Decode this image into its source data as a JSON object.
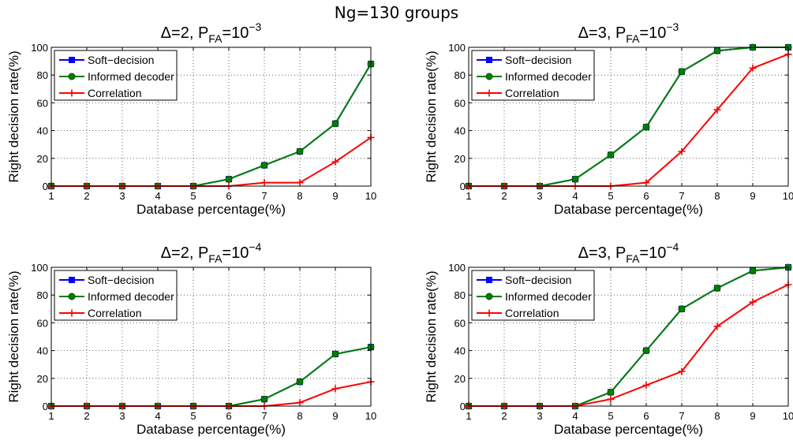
{
  "suptitle": "Ng=130 groups",
  "chart_data": [
    {
      "type": "line",
      "title": {
        "lead": "Δ=2, P",
        "sub": "FA",
        "mid": "=10",
        "sup": "−3"
      },
      "xlabel": "Database percentage(%)",
      "ylabel": "Right decision rate(%)",
      "x": [
        1,
        2,
        3,
        4,
        5,
        6,
        7,
        8,
        9,
        10
      ],
      "xlim": [
        1,
        10
      ],
      "ylim": [
        0,
        100
      ],
      "xticks": [
        1,
        2,
        3,
        4,
        5,
        6,
        7,
        8,
        9,
        10
      ],
      "yticks": [
        0,
        20,
        40,
        60,
        80,
        100
      ],
      "grid": true,
      "legend": "top-left",
      "series": [
        {
          "name": "Soft−decision",
          "color": "#0000ff",
          "marker": "square",
          "values": [
            0,
            0,
            0,
            0,
            0,
            5,
            15,
            25,
            45,
            88
          ]
        },
        {
          "name": "Informed decoder",
          "color": "#008000",
          "marker": "circle",
          "values": [
            0,
            0,
            0,
            0,
            0,
            5,
            15,
            25,
            45,
            88
          ]
        },
        {
          "name": "Correlation",
          "color": "#ff0000",
          "marker": "plus",
          "values": [
            0,
            0,
            0,
            0,
            0,
            0,
            2.5,
            2.5,
            17.5,
            35
          ]
        }
      ]
    },
    {
      "type": "line",
      "title": {
        "lead": "Δ=3, P",
        "sub": "FA",
        "mid": "=10",
        "sup": "−3"
      },
      "xlabel": "Database percentage(%)",
      "ylabel": "Right decision rate(%)",
      "x": [
        1,
        2,
        3,
        4,
        5,
        6,
        7,
        8,
        9,
        10
      ],
      "xlim": [
        1,
        10
      ],
      "ylim": [
        0,
        100
      ],
      "xticks": [
        1,
        2,
        3,
        4,
        5,
        6,
        7,
        8,
        9,
        10
      ],
      "yticks": [
        0,
        20,
        40,
        60,
        80,
        100
      ],
      "grid": true,
      "legend": "top-left",
      "series": [
        {
          "name": "Soft−decision",
          "color": "#0000ff",
          "marker": "square",
          "values": [
            0,
            0,
            0,
            5,
            22.5,
            42.5,
            82.5,
            97.5,
            100,
            100
          ]
        },
        {
          "name": "Informed decoder",
          "color": "#008000",
          "marker": "circle",
          "values": [
            0,
            0,
            0,
            5,
            22.5,
            42.5,
            82.5,
            97.5,
            100,
            100
          ]
        },
        {
          "name": "Correlation",
          "color": "#ff0000",
          "marker": "plus",
          "values": [
            0,
            0,
            0,
            0,
            0,
            2.5,
            25,
            55,
            85,
            95
          ]
        }
      ]
    },
    {
      "type": "line",
      "title": {
        "lead": "Δ=2, P",
        "sub": "FA",
        "mid": "=10",
        "sup": "−4"
      },
      "xlabel": "Database percentage(%)",
      "ylabel": "Right decision rate(%)",
      "x": [
        1,
        2,
        3,
        4,
        5,
        6,
        7,
        8,
        9,
        10
      ],
      "xlim": [
        1,
        10
      ],
      "ylim": [
        0,
        100
      ],
      "xticks": [
        1,
        2,
        3,
        4,
        5,
        6,
        7,
        8,
        9,
        10
      ],
      "yticks": [
        0,
        20,
        40,
        60,
        80,
        100
      ],
      "grid": true,
      "legend": "top-left",
      "series": [
        {
          "name": "Soft−decision",
          "color": "#0000ff",
          "marker": "square",
          "values": [
            0,
            0,
            0,
            0,
            0,
            0,
            5,
            17.5,
            37.5,
            42.5
          ]
        },
        {
          "name": "Informed decoder",
          "color": "#008000",
          "marker": "circle",
          "values": [
            0,
            0,
            0,
            0,
            0,
            0,
            5,
            17.5,
            37.5,
            42.5
          ]
        },
        {
          "name": "Correlation",
          "color": "#ff0000",
          "marker": "plus",
          "values": [
            0,
            0,
            0,
            0,
            0,
            0,
            0,
            2.5,
            12.5,
            17.5
          ]
        }
      ]
    },
    {
      "type": "line",
      "title": {
        "lead": "Δ=3, P",
        "sub": "FA",
        "mid": "=10",
        "sup": "−4"
      },
      "xlabel": "Database percentage(%)",
      "ylabel": "Right decision rate(%)",
      "x": [
        1,
        2,
        3,
        4,
        5,
        6,
        7,
        8,
        9,
        10
      ],
      "xlim": [
        1,
        10
      ],
      "ylim": [
        0,
        100
      ],
      "xticks": [
        1,
        2,
        3,
        4,
        5,
        6,
        7,
        8,
        9,
        10
      ],
      "yticks": [
        0,
        20,
        40,
        60,
        80,
        100
      ],
      "grid": true,
      "legend": "top-left",
      "series": [
        {
          "name": "Soft−decision",
          "color": "#0000ff",
          "marker": "square",
          "values": [
            0,
            0,
            0,
            0,
            10,
            40,
            70,
            85,
            97.5,
            100
          ]
        },
        {
          "name": "Informed decoder",
          "color": "#008000",
          "marker": "circle",
          "values": [
            0,
            0,
            0,
            0,
            10,
            40,
            70,
            85,
            97.5,
            100
          ]
        },
        {
          "name": "Correlation",
          "color": "#ff0000",
          "marker": "plus",
          "values": [
            0,
            0,
            0,
            0,
            5,
            15,
            25,
            57.5,
            75,
            87.5
          ]
        }
      ]
    }
  ]
}
